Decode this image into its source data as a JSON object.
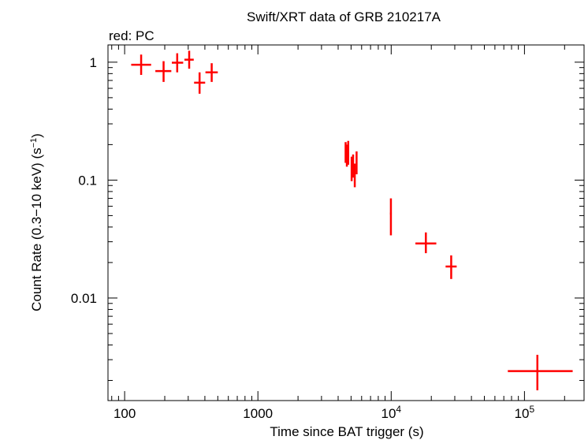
{
  "chart_data": {
    "type": "scatter",
    "title": "Swift/XRT data of GRB 210217A",
    "subtitle": "red: PC",
    "xlabel": "Time since BAT trigger (s)",
    "ylabel": "Count Rate (0.3−10 keV) (s",
    "ylabel_sup": "−1",
    "ylabel_end": ")",
    "xscale": "log",
    "yscale": "log",
    "xlim": [
      75,
      280000
    ],
    "ylim": [
      0.00135,
      1.4
    ],
    "grid": false,
    "x_ticks": [
      {
        "value": 100,
        "base": "100",
        "exp": ""
      },
      {
        "value": 1000,
        "base": "1000",
        "exp": ""
      },
      {
        "value": 10000,
        "base": "10",
        "exp": "4"
      },
      {
        "value": 100000,
        "base": "10",
        "exp": "5"
      }
    ],
    "y_ticks": [
      {
        "value": 1,
        "label": "1"
      },
      {
        "value": 0.1,
        "label": "0.1"
      },
      {
        "value": 0.01,
        "label": "0.01"
      }
    ],
    "series": [
      {
        "color": "#ff0000",
        "points": [
          {
            "x": 133,
            "xlo": 112,
            "xhi": 158,
            "y": 0.95,
            "ylo": 0.78,
            "yhi": 1.16
          },
          {
            "x": 196,
            "xlo": 170,
            "xhi": 224,
            "y": 0.84,
            "ylo": 0.68,
            "yhi": 1.02
          },
          {
            "x": 248,
            "xlo": 226,
            "xhi": 275,
            "y": 0.99,
            "ylo": 0.82,
            "yhi": 1.19
          },
          {
            "x": 305,
            "xlo": 281,
            "xhi": 330,
            "y": 1.05,
            "ylo": 0.88,
            "yhi": 1.25
          },
          {
            "x": 365,
            "xlo": 332,
            "xhi": 402,
            "y": 0.67,
            "ylo": 0.54,
            "yhi": 0.82
          },
          {
            "x": 450,
            "xlo": 404,
            "xhi": 500,
            "y": 0.82,
            "ylo": 0.68,
            "yhi": 0.98
          },
          {
            "x": 4550,
            "xlo": 4510,
            "xhi": 4590,
            "y": 0.175,
            "ylo": 0.14,
            "yhi": 0.21
          },
          {
            "x": 4650,
            "xlo": 4610,
            "xhi": 4690,
            "y": 0.16,
            "ylo": 0.13,
            "yhi": 0.2
          },
          {
            "x": 4760,
            "xlo": 4720,
            "xhi": 4800,
            "y": 0.17,
            "ylo": 0.135,
            "yhi": 0.215
          },
          {
            "x": 5050,
            "xlo": 5000,
            "xhi": 5100,
            "y": 0.125,
            "ylo": 0.098,
            "yhi": 0.158
          },
          {
            "x": 5180,
            "xlo": 5130,
            "xhi": 5230,
            "y": 0.132,
            "ylo": 0.105,
            "yhi": 0.165
          },
          {
            "x": 5330,
            "xlo": 5270,
            "xhi": 5390,
            "y": 0.11,
            "ylo": 0.087,
            "yhi": 0.138
          },
          {
            "x": 5500,
            "xlo": 5440,
            "xhi": 5560,
            "y": 0.14,
            "ylo": 0.112,
            "yhi": 0.175
          },
          {
            "x": 9950,
            "xlo": 9800,
            "xhi": 10100,
            "y": 0.052,
            "ylo": 0.034,
            "yhi": 0.07
          },
          {
            "x": 18200,
            "xlo": 15200,
            "xhi": 21800,
            "y": 0.029,
            "ylo": 0.024,
            "yhi": 0.036
          },
          {
            "x": 28200,
            "xlo": 25600,
            "xhi": 31000,
            "y": 0.0185,
            "ylo": 0.0145,
            "yhi": 0.023
          },
          {
            "x": 125000,
            "xlo": 75000,
            "xhi": 230000,
            "y": 0.0024,
            "ylo": 0.00165,
            "yhi": 0.0033
          }
        ]
      }
    ]
  }
}
